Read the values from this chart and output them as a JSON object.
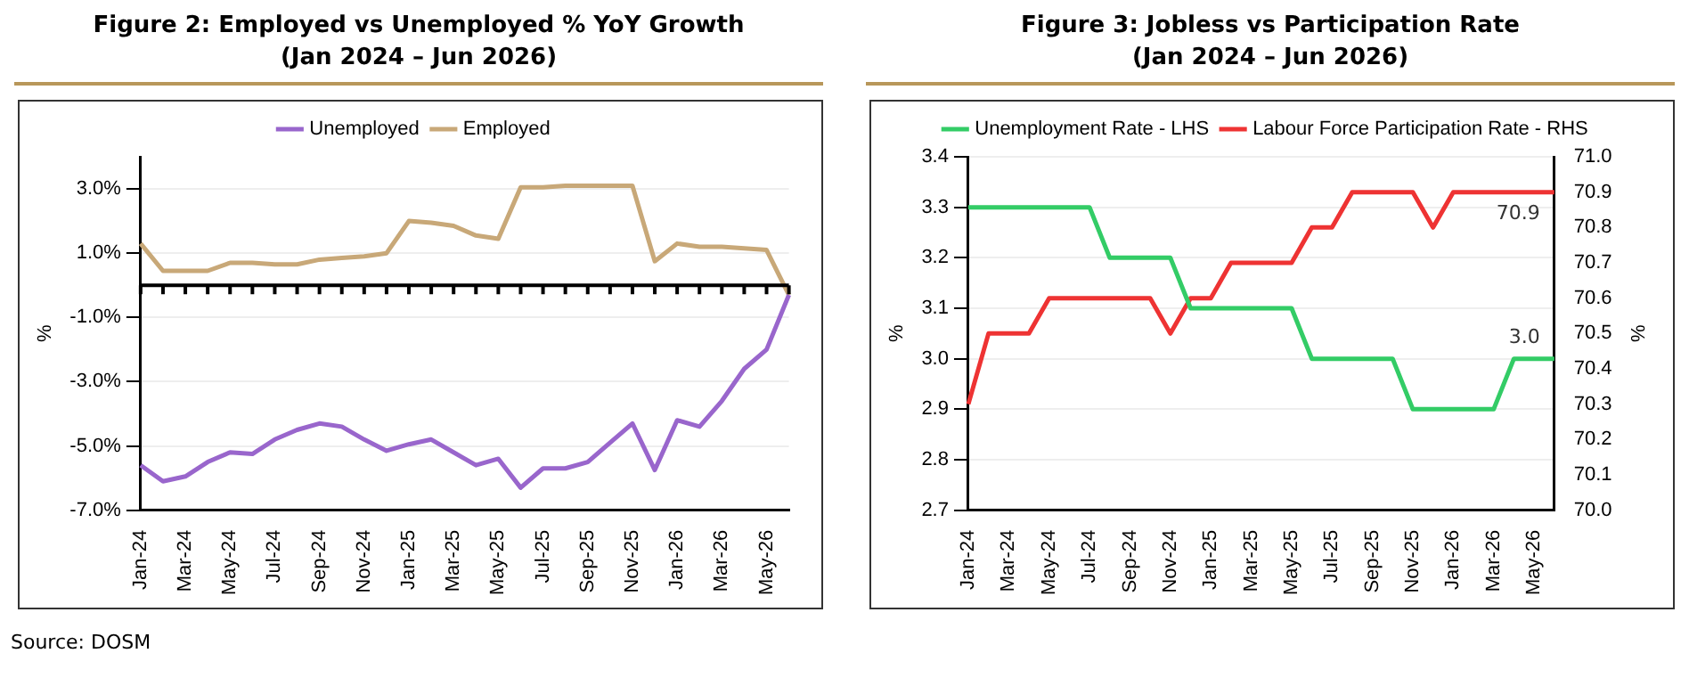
{
  "chart_data": [
    {
      "type": "line",
      "title": "Figure 2: Employed vs Unemployed % YoY Growth",
      "subtitle": "(Jan 2024 – Jun 2026)",
      "ylabel": "%",
      "categories": [
        "Jan-24",
        null,
        "Mar-24",
        null,
        "May-24",
        null,
        "Jul-24",
        null,
        "Sep-24",
        null,
        "Nov-24",
        null,
        "Jan-25",
        null,
        "Mar-25",
        null,
        "May-25",
        null,
        "Jul-25",
        null,
        "Sep-25",
        null,
        "Nov-25",
        null,
        "Jan-26",
        null,
        "Mar-26",
        null,
        "May-26",
        null
      ],
      "series": [
        {
          "name": "Unemployed",
          "color": "#9966cc",
          "values": [
            -5.6,
            -6.1,
            -5.95,
            -5.5,
            -5.2,
            -5.25,
            -4.8,
            -4.5,
            -4.3,
            -4.4,
            -4.8,
            -5.15,
            -4.95,
            -4.8,
            -5.2,
            -5.6,
            -5.4,
            -6.3,
            -5.7,
            -5.7,
            -5.5,
            -4.9,
            -4.3,
            -5.75,
            -4.2,
            -4.4,
            -3.6,
            -2.6,
            -2.0,
            -0.3
          ]
        },
        {
          "name": "Employed",
          "color": "#c8a878",
          "values": [
            1.3,
            0.45,
            0.45,
            0.45,
            0.7,
            0.7,
            0.65,
            0.65,
            0.8,
            0.85,
            0.9,
            1.0,
            2.0,
            1.95,
            1.85,
            1.55,
            1.45,
            3.05,
            3.05,
            3.1,
            3.1,
            3.1,
            3.1,
            0.75,
            1.3,
            1.2,
            1.2,
            1.15,
            1.1,
            -0.3
          ]
        }
      ],
      "ylim": [
        -7,
        4
      ],
      "yticks": [
        {
          "value": -7,
          "label": "-7.0%"
        },
        {
          "value": -5,
          "label": "-5.0%"
        },
        {
          "value": -3,
          "label": "-3.0%"
        },
        {
          "value": -1,
          "label": "-1.0%"
        },
        {
          "value": 1,
          "label": "1.0%"
        },
        {
          "value": 3,
          "label": "3.0%"
        }
      ],
      "ref_lines": [
        {
          "axis": "y",
          "value": 0,
          "color": "#000000"
        }
      ],
      "grid": "y",
      "legend": "top",
      "marker": "none",
      "line_style": "solid",
      "annotations": [
        "Source:  DOSM"
      ]
    },
    {
      "type": "line",
      "title": "Figure 3: Jobless vs Participation Rate",
      "subtitle": "(Jan 2024 – Jun 2026)",
      "ylabel": "%",
      "y2label": "%",
      "categories": [
        "Jan-24",
        null,
        "Mar-24",
        null,
        "May-24",
        null,
        "Jul-24",
        null,
        "Sep-24",
        null,
        "Nov-24",
        null,
        "Jan-25",
        null,
        "Mar-25",
        null,
        "May-25",
        null,
        "Jul-25",
        null,
        "Sep-25",
        null,
        "Nov-25",
        null,
        "Jan-26",
        null,
        "Mar-26",
        null,
        "May-26",
        null
      ],
      "series": [
        {
          "name": "Unemployment Rate - LHS",
          "color": "#33cc66",
          "values": [
            3.3,
            3.3,
            3.3,
            3.3,
            3.3,
            3.3,
            3.3,
            3.2,
            3.2,
            3.2,
            3.2,
            3.1,
            3.1,
            3.1,
            3.1,
            3.1,
            3.1,
            3.0,
            3.0,
            3.0,
            3.0,
            3.0,
            2.9,
            2.9,
            2.9,
            2.9,
            2.9,
            3.0,
            3.0,
            3.0
          ],
          "value_labels": [
            null,
            null,
            null,
            null,
            null,
            null,
            null,
            null,
            null,
            null,
            null,
            null,
            null,
            null,
            null,
            null,
            null,
            null,
            null,
            null,
            null,
            null,
            null,
            null,
            null,
            null,
            null,
            null,
            null,
            "3.0"
          ]
        },
        {
          "name": "Labour Force Participation Rate - RHS",
          "color": "#ee3333",
          "axis": "y2",
          "values": [
            70.3,
            70.5,
            70.5,
            70.5,
            70.6,
            70.6,
            70.6,
            70.6,
            70.6,
            70.6,
            70.5,
            70.6,
            70.6,
            70.7,
            70.7,
            70.7,
            70.7,
            70.8,
            70.8,
            70.9,
            70.9,
            70.9,
            70.9,
            70.8,
            70.9,
            70.9,
            70.9,
            70.9,
            70.9,
            70.9
          ],
          "value_labels": [
            null,
            null,
            null,
            null,
            null,
            null,
            null,
            null,
            null,
            null,
            null,
            null,
            null,
            null,
            null,
            null,
            null,
            null,
            null,
            null,
            null,
            null,
            null,
            null,
            null,
            null,
            null,
            null,
            null,
            "70.9"
          ]
        }
      ],
      "ylim": [
        2.7,
        3.4
      ],
      "yticks": [
        {
          "value": 2.7,
          "label": "2.7"
        },
        {
          "value": 2.8,
          "label": "2.8"
        },
        {
          "value": 2.9,
          "label": "2.9"
        },
        {
          "value": 3.0,
          "label": "3.0"
        },
        {
          "value": 3.1,
          "label": "3.1"
        },
        {
          "value": 3.2,
          "label": "3.2"
        },
        {
          "value": 3.3,
          "label": "3.3"
        },
        {
          "value": 3.4,
          "label": "3.4"
        }
      ],
      "y2lim": [
        70.0,
        71.0
      ],
      "y2ticks": [
        {
          "value": 70.0,
          "label": "70.0"
        },
        {
          "value": 70.1,
          "label": "70.1"
        },
        {
          "value": 70.2,
          "label": "70.2"
        },
        {
          "value": 70.3,
          "label": "70.3"
        },
        {
          "value": 70.4,
          "label": "70.4"
        },
        {
          "value": 70.5,
          "label": "70.5"
        },
        {
          "value": 70.6,
          "label": "70.6"
        },
        {
          "value": 70.7,
          "label": "70.7"
        },
        {
          "value": 70.8,
          "label": "70.8"
        },
        {
          "value": 70.9,
          "label": "70.9"
        },
        {
          "value": 71.0,
          "label": "71.0"
        }
      ],
      "grid": "y",
      "legend": "top",
      "marker": "none",
      "line_style": "solid"
    }
  ]
}
